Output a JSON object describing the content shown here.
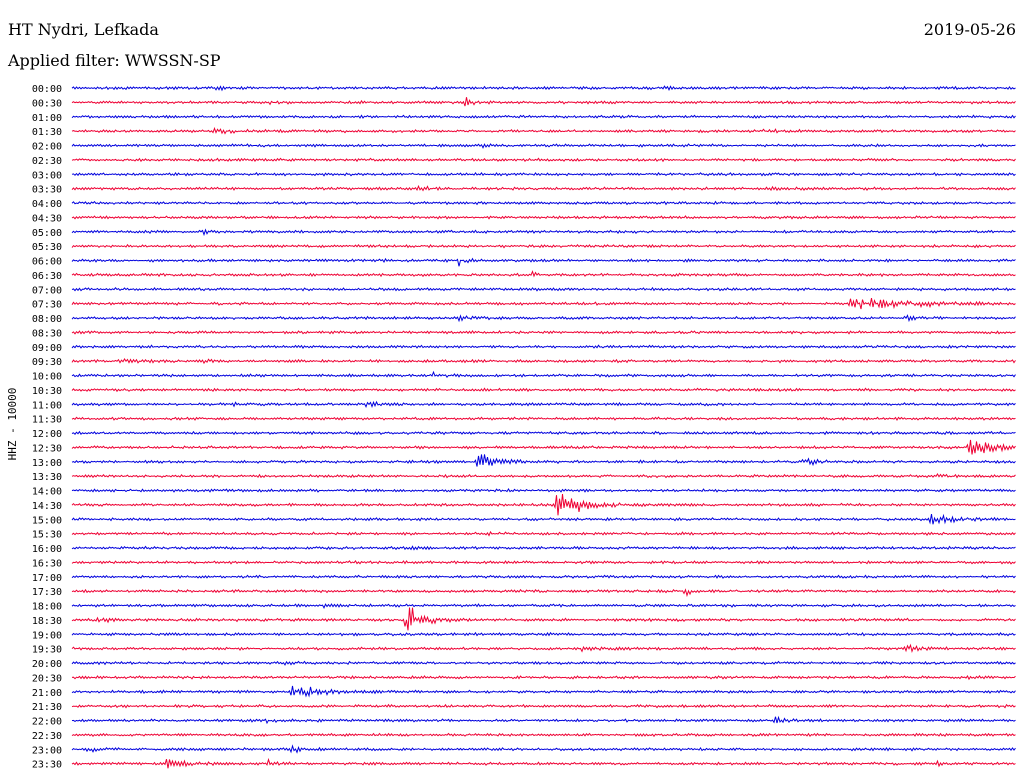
{
  "header": {
    "station": "HT Nydri, Lefkada",
    "date": "2019-05-26",
    "filter": "Applied filter: WWSSN-SP"
  },
  "chart_data": {
    "type": "line",
    "subtype": "helicorder",
    "ylabel": "HHZ - 10000",
    "row_labels": [
      "00:00",
      "00:30",
      "01:00",
      "01:30",
      "02:00",
      "02:30",
      "03:00",
      "03:30",
      "04:00",
      "04:30",
      "05:00",
      "05:30",
      "06:00",
      "06:30",
      "07:00",
      "07:30",
      "08:00",
      "08:30",
      "09:00",
      "09:30",
      "10:00",
      "10:30",
      "11:00",
      "11:30",
      "12:00",
      "12:30",
      "13:00",
      "13:30",
      "14:00",
      "14:30",
      "15:00",
      "15:30",
      "16:00",
      "16:30",
      "17:00",
      "17:30",
      "18:00",
      "18:30",
      "19:00",
      "19:30",
      "20:00",
      "20:30",
      "21:00",
      "21:30",
      "22:00",
      "22:30",
      "23:00",
      "23:30"
    ],
    "colors": [
      "#0000dd",
      "#ee0033"
    ],
    "events": [
      {
        "row": 0,
        "minute": 4.6,
        "amp": 0.6,
        "dur": 0.3
      },
      {
        "row": 0,
        "minute": 18.8,
        "amp": 0.5,
        "dur": 0.3
      },
      {
        "row": 1,
        "minute": 6.3,
        "amp": 0.2,
        "dur": 0.8
      },
      {
        "row": 1,
        "minute": 12.5,
        "amp": 0.75,
        "dur": 0.5
      },
      {
        "row": 2,
        "minute": 28.4,
        "amp": 0.25,
        "dur": 0.8
      },
      {
        "row": 3,
        "minute": 4.5,
        "amp": 0.4,
        "dur": 1.2
      },
      {
        "row": 3,
        "minute": 22.0,
        "amp": 0.25,
        "dur": 0.8
      },
      {
        "row": 4,
        "minute": 13.0,
        "amp": 0.35,
        "dur": 0.3
      },
      {
        "row": 7,
        "minute": 11.0,
        "amp": 0.15,
        "dur": 2.0
      },
      {
        "row": 7,
        "minute": 22.0,
        "amp": 0.2,
        "dur": 1.0
      },
      {
        "row": 10,
        "minute": 4.2,
        "amp": 0.6,
        "dur": 0.3
      },
      {
        "row": 12,
        "minute": 9.8,
        "amp": 0.2,
        "dur": 0.3
      },
      {
        "row": 12,
        "minute": 12.3,
        "amp": 0.55,
        "dur": 0.6
      },
      {
        "row": 13,
        "minute": 14.6,
        "amp": 0.55,
        "dur": 0.3
      },
      {
        "row": 15,
        "minute": 24.7,
        "amp": 0.75,
        "dur": 5.0
      },
      {
        "row": 16,
        "minute": 12.3,
        "amp": 0.25,
        "dur": 1.2
      },
      {
        "row": 16,
        "minute": 26.5,
        "amp": 0.3,
        "dur": 0.8
      },
      {
        "row": 19,
        "minute": 1.5,
        "amp": 0.15,
        "dur": 2.5
      },
      {
        "row": 19,
        "minute": 4.0,
        "amp": 0.3,
        "dur": 0.8
      },
      {
        "row": 20,
        "minute": 11.5,
        "amp": 0.3,
        "dur": 1.5
      },
      {
        "row": 22,
        "minute": 5.0,
        "amp": 0.15,
        "dur": 2.0
      },
      {
        "row": 22,
        "minute": 9.3,
        "amp": 0.4,
        "dur": 0.8
      },
      {
        "row": 25,
        "minute": 28.5,
        "amp": 1.25,
        "dur": 1.8
      },
      {
        "row": 26,
        "minute": 12.8,
        "amp": 1.2,
        "dur": 1.5
      },
      {
        "row": 26,
        "minute": 23.2,
        "amp": 0.65,
        "dur": 0.8
      },
      {
        "row": 27,
        "minute": 27.5,
        "amp": 0.2,
        "dur": 0.8
      },
      {
        "row": 29,
        "minute": 15.4,
        "amp": 1.75,
        "dur": 2.0
      },
      {
        "row": 30,
        "minute": 27.3,
        "amp": 0.6,
        "dur": 2.0
      },
      {
        "row": 31,
        "minute": 13.2,
        "amp": 0.35,
        "dur": 0.8
      },
      {
        "row": 32,
        "minute": 10.8,
        "amp": 0.4,
        "dur": 0.3
      },
      {
        "row": 35,
        "minute": 19.5,
        "amp": 0.65,
        "dur": 0.4
      },
      {
        "row": 36,
        "minute": 8.0,
        "amp": 0.2,
        "dur": 0.8
      },
      {
        "row": 37,
        "minute": 0.8,
        "amp": 0.25,
        "dur": 1.0
      },
      {
        "row": 37,
        "minute": 10.6,
        "amp": 2.0,
        "dur": 1.5
      },
      {
        "row": 39,
        "minute": 16.2,
        "amp": 0.35,
        "dur": 2.0
      },
      {
        "row": 39,
        "minute": 26.5,
        "amp": 0.45,
        "dur": 1.2
      },
      {
        "row": 40,
        "minute": 6.8,
        "amp": 0.15,
        "dur": 1.0
      },
      {
        "row": 41,
        "minute": 28.5,
        "amp": 0.2,
        "dur": 0.5
      },
      {
        "row": 42,
        "minute": 7.0,
        "amp": 1.0,
        "dur": 2.0
      },
      {
        "row": 44,
        "minute": 6.2,
        "amp": 0.25,
        "dur": 0.5
      },
      {
        "row": 44,
        "minute": 22.3,
        "amp": 0.35,
        "dur": 0.8
      },
      {
        "row": 46,
        "minute": 0.5,
        "amp": 0.25,
        "dur": 1.0
      },
      {
        "row": 46,
        "minute": 7.0,
        "amp": 0.65,
        "dur": 0.5
      },
      {
        "row": 47,
        "minute": 3.0,
        "amp": 0.55,
        "dur": 1.5
      },
      {
        "row": 47,
        "minute": 6.2,
        "amp": 0.4,
        "dur": 0.8
      },
      {
        "row": 47,
        "minute": 27.5,
        "amp": 0.3,
        "dur": 0.5
      }
    ]
  }
}
